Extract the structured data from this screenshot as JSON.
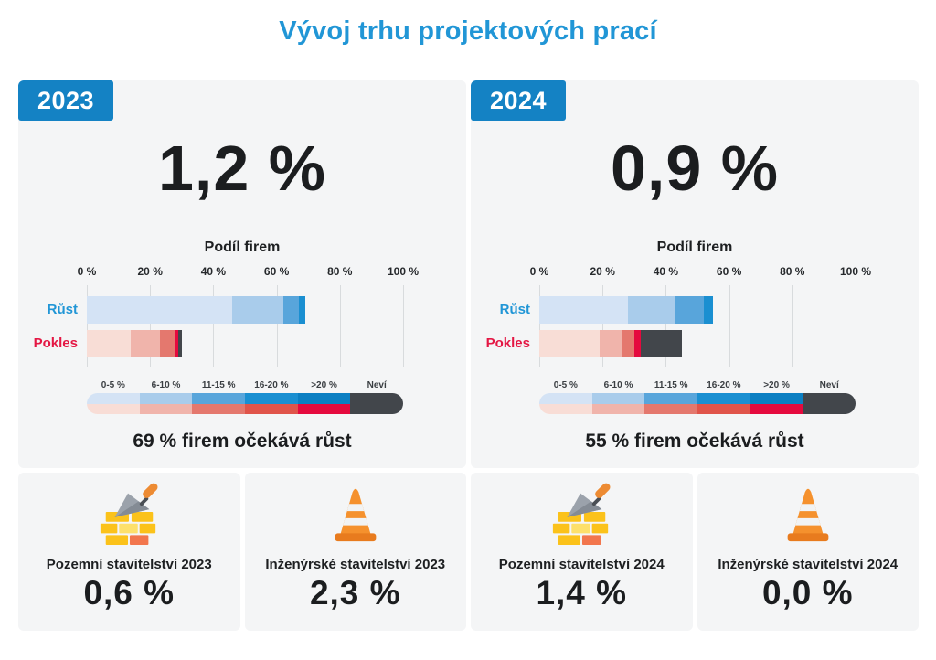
{
  "title": "Vývoj trhu projektových prací",
  "colors": {
    "title_blue": "#2196d6",
    "badge_blue": "#1482c4",
    "panel_bg": "#f4f5f6",
    "grid_line": "#d8dbdd",
    "text_dark": "#1d1f21",
    "rust_label": "#2196d6",
    "pokles_label": "#e41744",
    "nevi": "#42464b",
    "blue_scale": [
      "#d4e3f5",
      "#a9cceb",
      "#58a5db",
      "#1a8fd1",
      "#0c7fc2"
    ],
    "red_scale": [
      "#f8ddd6",
      "#f0b4ab",
      "#e4786e",
      "#e0544a",
      "#e50a3e"
    ]
  },
  "legend_buckets": [
    "0-5 %",
    "6-10 %",
    "11-15 %",
    "16-20 %",
    ">20 %",
    "Neví"
  ],
  "chart_data": [
    {
      "type": "bar",
      "year": "2023",
      "headline_value": "1,2 %",
      "axis_title": "Podíl firem",
      "x_ticks": [
        "0 %",
        "20 %",
        "40 %",
        "60 %",
        "80 %",
        "100 %"
      ],
      "xlim": [
        0,
        100
      ],
      "legend_position": "bottom",
      "rows": [
        {
          "key": "rust",
          "label": "Růst",
          "total": 69,
          "segments": [
            {
              "bucket": "0-5 %",
              "value": 46
            },
            {
              "bucket": "6-10 %",
              "value": 16
            },
            {
              "bucket": "11-15 %",
              "value": 5
            },
            {
              "bucket": "16-20 %",
              "value": 2
            }
          ]
        },
        {
          "key": "pokles",
          "label": "Pokles",
          "total": 30,
          "segments": [
            {
              "bucket": "0-5 %",
              "value": 14
            },
            {
              "bucket": "6-10 %",
              "value": 9
            },
            {
              "bucket": "11-15 %",
              "value": 5
            },
            {
              "bucket": ">20 %",
              "value": 1
            },
            {
              "bucket": "Neví",
              "value": 1
            }
          ]
        }
      ],
      "summary": "69 % firem očekává růst"
    },
    {
      "type": "bar",
      "year": "2024",
      "headline_value": "0,9 %",
      "axis_title": "Podíl firem",
      "x_ticks": [
        "0 %",
        "20 %",
        "40 %",
        "60 %",
        "80 %",
        "100 %"
      ],
      "xlim": [
        0,
        100
      ],
      "legend_position": "bottom",
      "rows": [
        {
          "key": "rust",
          "label": "Růst",
          "total": 55,
          "segments": [
            {
              "bucket": "0-5 %",
              "value": 28
            },
            {
              "bucket": "6-10 %",
              "value": 15
            },
            {
              "bucket": "11-15 %",
              "value": 9
            },
            {
              "bucket": "16-20 %",
              "value": 3
            }
          ]
        },
        {
          "key": "pokles",
          "label": "Pokles",
          "total": 45,
          "segments": [
            {
              "bucket": "0-5 %",
              "value": 19
            },
            {
              "bucket": "6-10 %",
              "value": 7
            },
            {
              "bucket": "11-15 %",
              "value": 4
            },
            {
              "bucket": ">20 %",
              "value": 2
            },
            {
              "bucket": "Neví",
              "value": 13
            }
          ]
        }
      ],
      "summary": "55 % firem očekává růst"
    }
  ],
  "cards": [
    {
      "icon": "bricks-trowel",
      "label": "Pozemní stavitelství 2023",
      "value": "0,6 %"
    },
    {
      "icon": "traffic-cone",
      "label": "Inženýrské stavitelství 2023",
      "value": "2,3 %"
    },
    {
      "icon": "bricks-trowel",
      "label": "Pozemní stavitelství 2024",
      "value": "1,4 %"
    },
    {
      "icon": "traffic-cone",
      "label": "Inženýrské stavitelství 2024",
      "value": "0,0 %"
    }
  ]
}
